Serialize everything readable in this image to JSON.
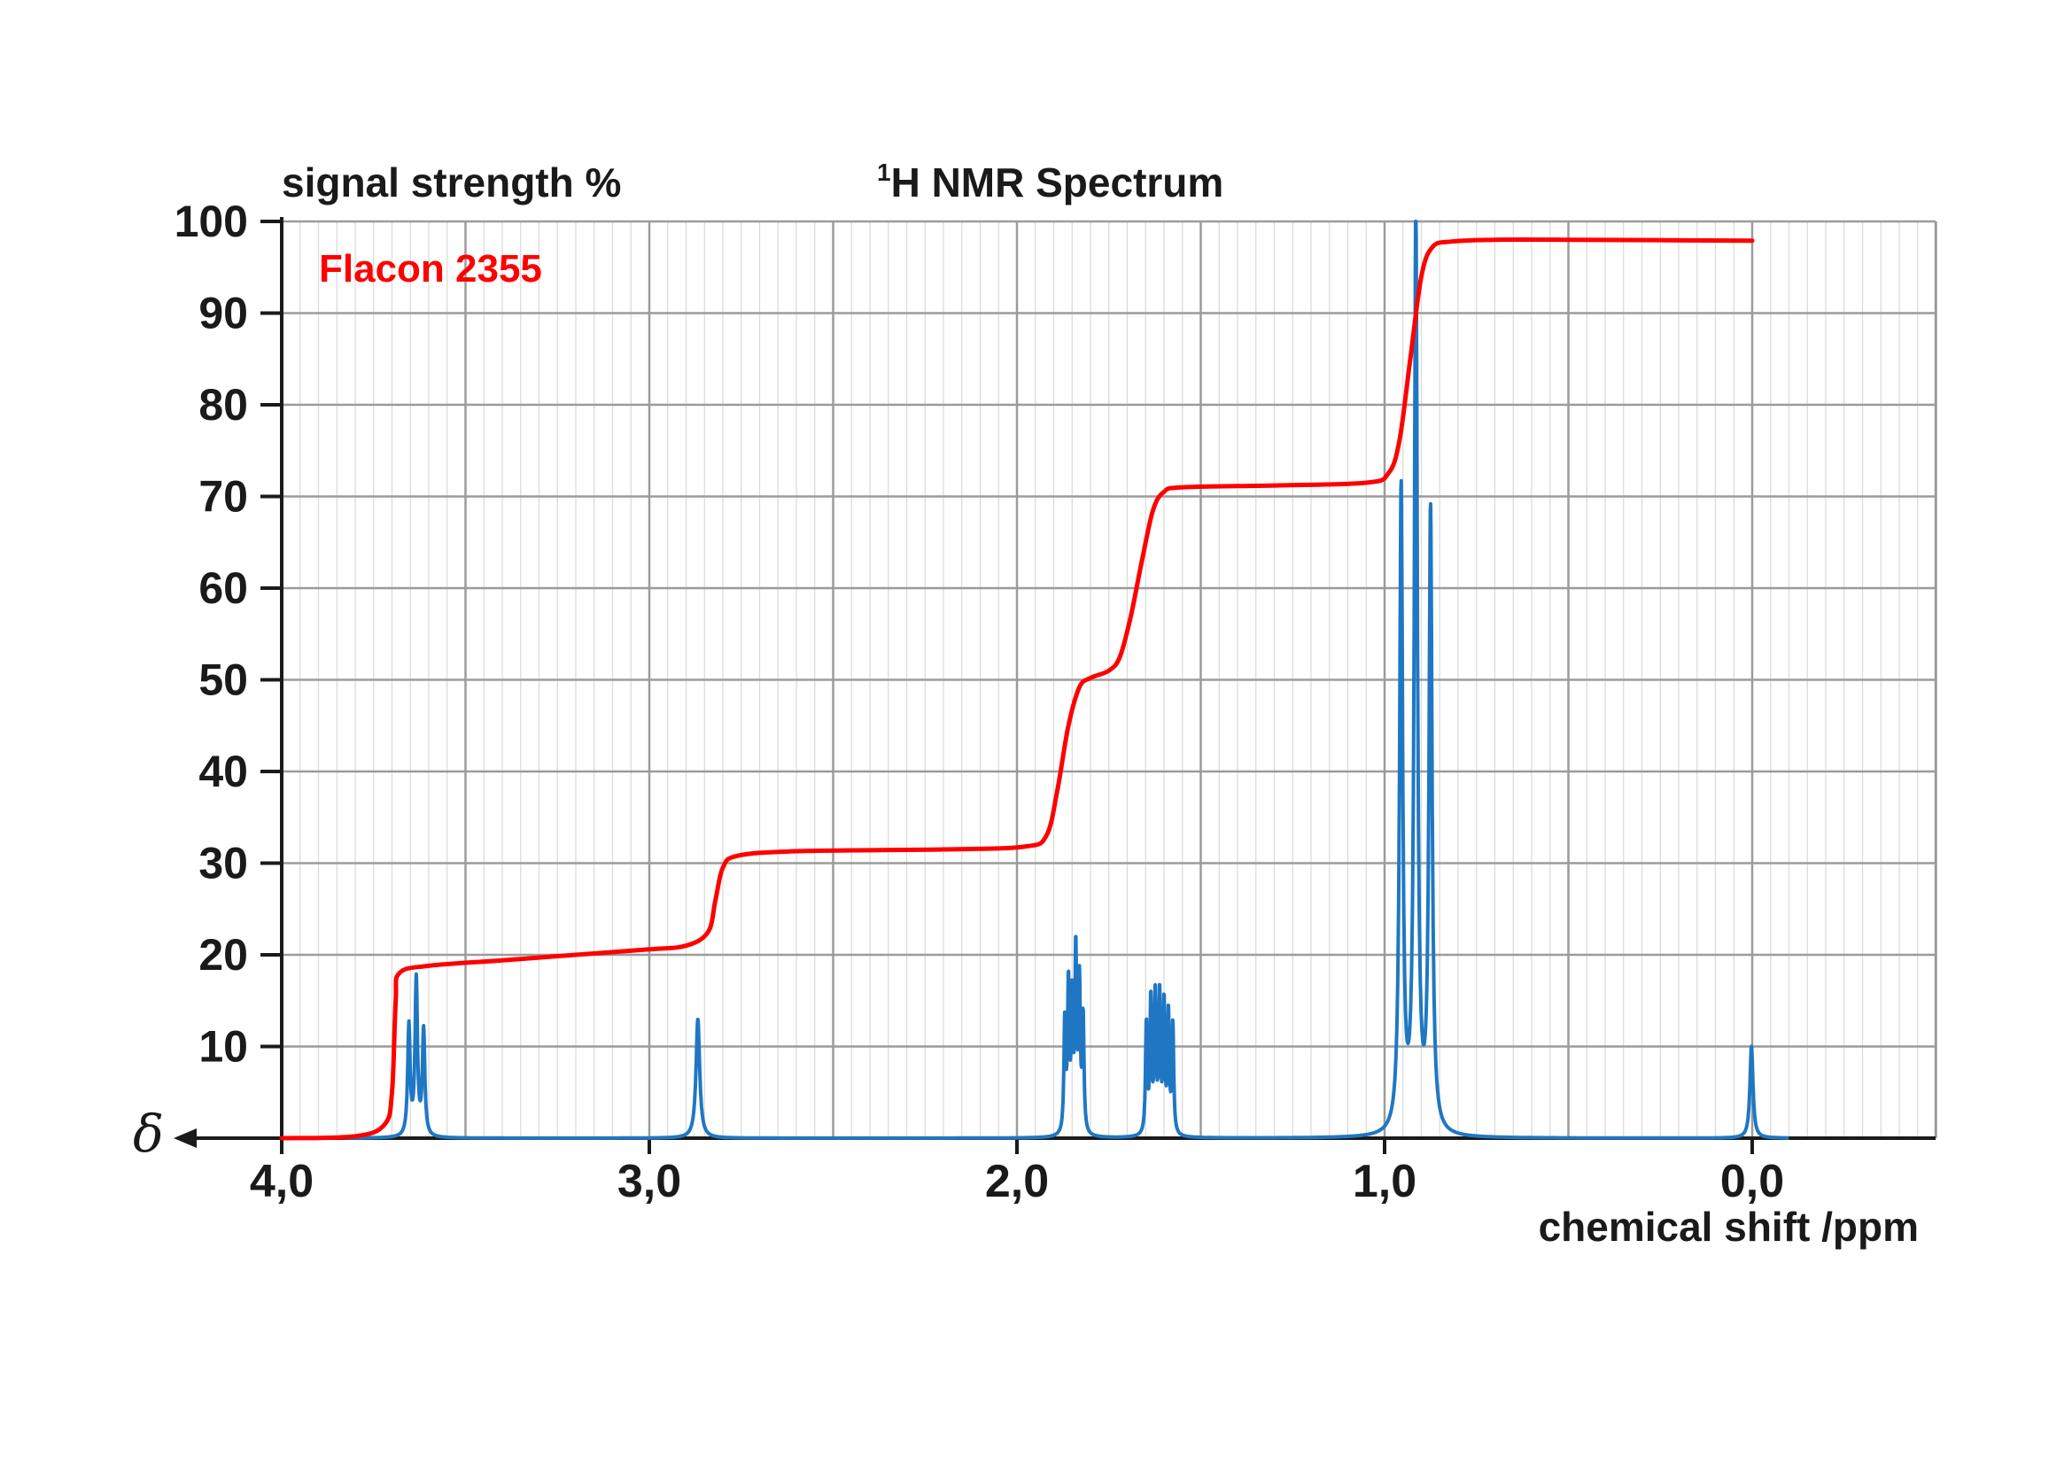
{
  "chart_data": {
    "type": "line",
    "title": "H NMR Spectrum",
    "title_superscript": "1",
    "ylabel": "signal strength %",
    "xlabel": "chemical shift /ppm",
    "x_axis_symbol": "δ",
    "annotation": "Flacon 2355",
    "x_reversed": true,
    "xlim": [
      4.0,
      -0.5
    ],
    "ylim": [
      0,
      100
    ],
    "x_ticks": [
      4.0,
      3.0,
      2.0,
      1.0,
      0.0
    ],
    "x_tick_labels": [
      "4,0",
      "3,0",
      "2,0",
      "1,0",
      "0,0"
    ],
    "y_ticks": [
      10,
      20,
      30,
      40,
      50,
      60,
      70,
      80,
      90,
      100
    ],
    "y_tick_labels": [
      "10",
      "20",
      "30",
      "40",
      "50",
      "60",
      "70",
      "80",
      "90",
      "100"
    ],
    "grid": true,
    "minor_x_step": 0.05,
    "series": [
      {
        "name": "",
        "role": "integration curve",
        "color": "#ff0000",
        "points": [
          [
            4.0,
            0
          ],
          [
            3.8,
            0.2
          ],
          [
            3.72,
            1.5
          ],
          [
            3.7,
            5
          ],
          [
            3.69,
            15
          ],
          [
            3.68,
            18
          ],
          [
            3.6,
            18.8
          ],
          [
            3.4,
            19.4
          ],
          [
            3.2,
            20.0
          ],
          [
            3.0,
            20.6
          ],
          [
            2.9,
            21.0
          ],
          [
            2.84,
            22.5
          ],
          [
            2.82,
            26
          ],
          [
            2.8,
            29.5
          ],
          [
            2.76,
            30.8
          ],
          [
            2.6,
            31.3
          ],
          [
            2.2,
            31.5
          ],
          [
            1.98,
            31.8
          ],
          [
            1.92,
            33
          ],
          [
            1.89,
            38
          ],
          [
            1.86,
            45
          ],
          [
            1.83,
            49.2
          ],
          [
            1.8,
            50.2
          ],
          [
            1.75,
            51
          ],
          [
            1.72,
            52.5
          ],
          [
            1.69,
            57
          ],
          [
            1.66,
            63
          ],
          [
            1.63,
            68.5
          ],
          [
            1.6,
            70.5
          ],
          [
            1.55,
            71.0
          ],
          [
            1.3,
            71.2
          ],
          [
            1.05,
            71.5
          ],
          [
            0.99,
            72.5
          ],
          [
            0.96,
            76
          ],
          [
            0.93,
            85
          ],
          [
            0.9,
            94
          ],
          [
            0.87,
            97.2
          ],
          [
            0.82,
            97.8
          ],
          [
            0.7,
            98.0
          ],
          [
            0.5,
            98.0
          ],
          [
            0.0,
            97.9
          ]
        ]
      },
      {
        "name": "",
        "role": "spectrum",
        "color": "#1f77c4",
        "peaks": [
          [
            3.654,
            12,
            0.004
          ],
          [
            3.634,
            17,
            0.004
          ],
          [
            3.614,
            11.5,
            0.004
          ],
          [
            2.868,
            13,
            0.006
          ],
          [
            1.87,
            12,
            0.0028
          ],
          [
            1.86,
            16,
            0.0028
          ],
          [
            1.85,
            14,
            0.0028
          ],
          [
            1.84,
            19.5,
            0.0028
          ],
          [
            1.83,
            16,
            0.0028
          ],
          [
            1.82,
            12.5,
            0.0028
          ],
          [
            1.648,
            12,
            0.0028
          ],
          [
            1.636,
            14.5,
            0.0028
          ],
          [
            1.624,
            15,
            0.0028
          ],
          [
            1.612,
            15,
            0.0028
          ],
          [
            1.6,
            14,
            0.0028
          ],
          [
            1.588,
            13,
            0.0028
          ],
          [
            1.576,
            12,
            0.0028
          ],
          [
            0.955,
            70,
            0.005
          ],
          [
            0.915,
            100,
            0.005
          ],
          [
            0.875,
            67.5,
            0.005
          ],
          [
            0.002,
            10,
            0.005
          ]
        ]
      }
    ]
  }
}
